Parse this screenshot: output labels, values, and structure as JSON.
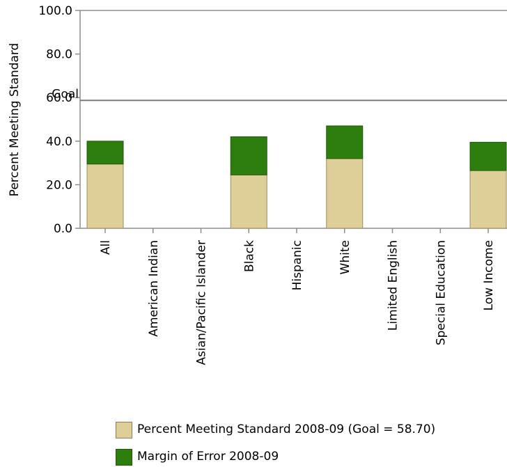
{
  "chart_data": {
    "type": "bar",
    "stacked": true,
    "title": "",
    "xlabel": "",
    "ylabel": "Percent Meeting Standard",
    "ylim": [
      0,
      100
    ],
    "yticks": [
      "0.0",
      "20.0",
      "40.0",
      "60.0",
      "80.0",
      "100.0"
    ],
    "categories": [
      "All",
      "American Indian",
      "Asian/Pacific Islander",
      "Black",
      "Hispanic",
      "White",
      "Limited English",
      "Special Education",
      "Low Income"
    ],
    "series": [
      {
        "name": "Percent Meeting Standard 2008-09 (Goal = 58.70)",
        "color": "#ddcf97",
        "values": [
          29.5,
          null,
          null,
          24.5,
          null,
          32.0,
          null,
          null,
          26.5
        ]
      },
      {
        "name": "Margin of Error 2008-09",
        "color": "#2e7d0f",
        "values": [
          10.5,
          null,
          null,
          17.5,
          null,
          15.0,
          null,
          null,
          13.0
        ]
      }
    ],
    "goal": {
      "label": "Goal",
      "value": 58.7
    },
    "grid": false,
    "legend_position": "bottom"
  }
}
